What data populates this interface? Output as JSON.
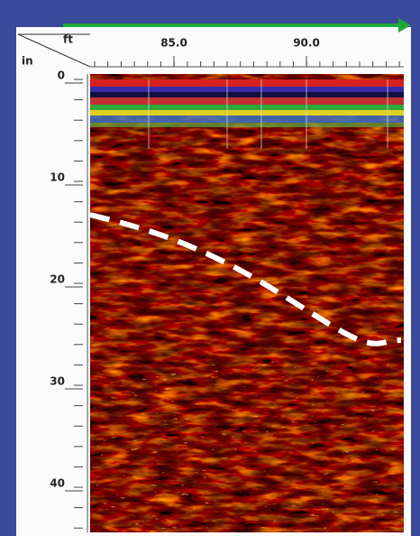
{
  "axes": {
    "x_unit": "ft",
    "y_unit": "in",
    "x_labels": [
      "85.0",
      "90.0"
    ],
    "y_labels": [
      "0",
      "10",
      "20",
      "30",
      "40"
    ]
  }
}
